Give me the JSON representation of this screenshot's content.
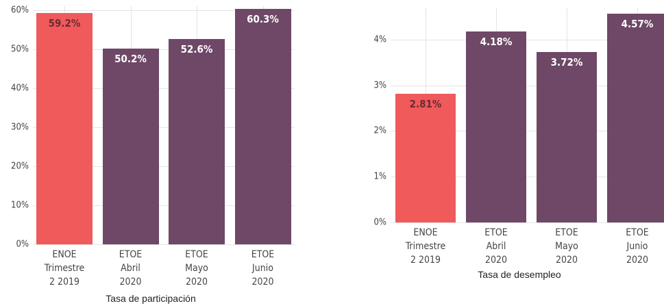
{
  "chart_data": [
    {
      "type": "bar",
      "x_label": "Tasa de participación",
      "categories": [
        "ENOE Trimestre 2 2019",
        "ETOE Abril 2020",
        "ETOE Mayo 2020",
        "ETOE Junio 2020"
      ],
      "values": [
        59.2,
        50.2,
        52.6,
        60.3
      ],
      "value_labels": [
        "59.2%",
        "50.2%",
        "52.6%",
        "60.3%"
      ],
      "colors": [
        "#f05a5a",
        "#6e4866",
        "#6e4866",
        "#6e4866"
      ],
      "value_label_colors": [
        "#6b2a35",
        "#ffffff",
        "#ffffff",
        "#ffffff"
      ],
      "ylim": [
        0,
        61
      ],
      "yticks": [
        {
          "value": 0,
          "label": "0%"
        },
        {
          "value": 10,
          "label": "10%"
        },
        {
          "value": 20,
          "label": "20%"
        },
        {
          "value": 30,
          "label": "30%"
        },
        {
          "value": 40,
          "label": "40%"
        },
        {
          "value": 50,
          "label": "50%"
        },
        {
          "value": 60,
          "label": "60%"
        }
      ],
      "grid": true
    },
    {
      "type": "bar",
      "x_label": "Tasa de desempleo",
      "categories": [
        "ENOE Trimestre 2 2019",
        "ETOE Abril 2020",
        "ETOE Mayo 2020",
        "ETOE Junio 2020"
      ],
      "values": [
        2.81,
        4.18,
        3.72,
        4.57
      ],
      "value_labels": [
        "2.81%",
        "4.18%",
        "3.72%",
        "4.57%"
      ],
      "colors": [
        "#f05a5a",
        "#6e4866",
        "#6e4866",
        "#6e4866"
      ],
      "value_label_colors": [
        "#6b2a35",
        "#ffffff",
        "#ffffff",
        "#ffffff"
      ],
      "ylim": [
        0,
        4.7
      ],
      "yticks": [
        {
          "value": 0,
          "label": "0%"
        },
        {
          "value": 1,
          "label": "1%"
        },
        {
          "value": 2,
          "label": "2%"
        },
        {
          "value": 3,
          "label": "3%"
        },
        {
          "value": 4,
          "label": "4%"
        }
      ],
      "grid": true
    }
  ]
}
